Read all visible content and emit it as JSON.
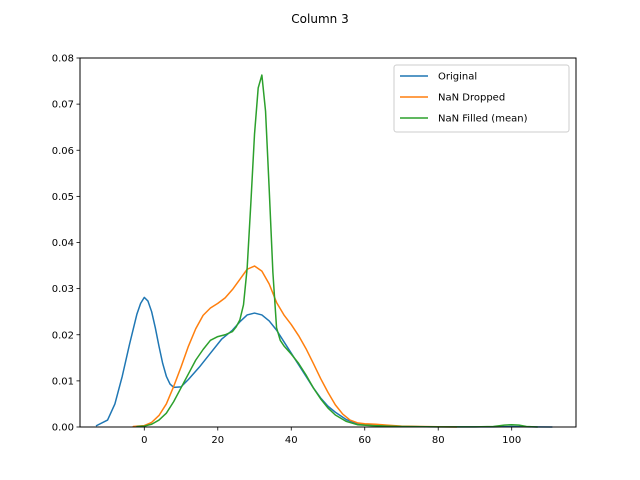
{
  "chart_data": {
    "type": "line",
    "title": "Column 3",
    "xlabel": "",
    "ylabel": "",
    "xlim": [
      -17.5,
      117.5
    ],
    "ylim": [
      0,
      0.08
    ],
    "xticks": [
      0,
      20,
      40,
      60,
      80,
      100
    ],
    "yticks": [
      0.0,
      0.01,
      0.02,
      0.03,
      0.04,
      0.05,
      0.06,
      0.07,
      0.08
    ],
    "xtick_labels": [
      "0",
      "20",
      "40",
      "60",
      "80",
      "100"
    ],
    "ytick_labels": [
      "0.00",
      "0.01",
      "0.02",
      "0.03",
      "0.04",
      "0.05",
      "0.06",
      "0.07",
      "0.08"
    ],
    "grid": false,
    "legend_position": "top-right",
    "series": [
      {
        "name": "Original",
        "color": "#1f77b4",
        "points": [
          [
            -13,
            0.0003
          ],
          [
            -10,
            0.0015
          ],
          [
            -8,
            0.005
          ],
          [
            -6,
            0.011
          ],
          [
            -4,
            0.018
          ],
          [
            -2,
            0.0245
          ],
          [
            -1,
            0.0268
          ],
          [
            0,
            0.0281
          ],
          [
            1,
            0.0273
          ],
          [
            2,
            0.025
          ],
          [
            3,
            0.0215
          ],
          [
            4,
            0.0175
          ],
          [
            5,
            0.0138
          ],
          [
            6,
            0.011
          ],
          [
            7,
            0.0093
          ],
          [
            8,
            0.0086
          ],
          [
            10,
            0.0087
          ],
          [
            12,
            0.0103
          ],
          [
            15,
            0.013
          ],
          [
            18,
            0.016
          ],
          [
            21,
            0.019
          ],
          [
            24,
            0.021
          ],
          [
            26,
            0.0228
          ],
          [
            28,
            0.0243
          ],
          [
            30,
            0.0247
          ],
          [
            32,
            0.0243
          ],
          [
            34,
            0.023
          ],
          [
            36,
            0.021
          ],
          [
            38,
            0.0185
          ],
          [
            40,
            0.016
          ],
          [
            42,
            0.0135
          ],
          [
            44,
            0.011
          ],
          [
            46,
            0.0085
          ],
          [
            48,
            0.0063
          ],
          [
            50,
            0.0045
          ],
          [
            52,
            0.0032
          ],
          [
            55,
            0.0016
          ],
          [
            58,
            0.0007
          ],
          [
            62,
            0.0005
          ],
          [
            66,
            0.0003
          ],
          [
            70,
            0.0001
          ],
          [
            75,
            5e-05
          ],
          [
            85,
            3e-05
          ],
          [
            95,
            4e-05
          ],
          [
            100,
            0.0001
          ],
          [
            105,
            3e-05
          ],
          [
            111,
            0.0
          ]
        ]
      },
      {
        "name": "NaN Dropped",
        "color": "#ff7f0e",
        "points": [
          [
            -3,
            0.0001
          ],
          [
            0,
            0.0003
          ],
          [
            2,
            0.001
          ],
          [
            4,
            0.0025
          ],
          [
            6,
            0.005
          ],
          [
            8,
            0.0088
          ],
          [
            10,
            0.013
          ],
          [
            12,
            0.0175
          ],
          [
            14,
            0.0213
          ],
          [
            16,
            0.0242
          ],
          [
            18,
            0.0258
          ],
          [
            20,
            0.0268
          ],
          [
            22,
            0.028
          ],
          [
            24,
            0.0298
          ],
          [
            26,
            0.032
          ],
          [
            28,
            0.0342
          ],
          [
            30,
            0.0349
          ],
          [
            32,
            0.0338
          ],
          [
            34,
            0.031
          ],
          [
            36,
            0.027
          ],
          [
            38,
            0.0243
          ],
          [
            40,
            0.0222
          ],
          [
            42,
            0.0198
          ],
          [
            44,
            0.017
          ],
          [
            46,
            0.0138
          ],
          [
            48,
            0.0105
          ],
          [
            50,
            0.0075
          ],
          [
            52,
            0.0048
          ],
          [
            54,
            0.0028
          ],
          [
            56,
            0.0015
          ],
          [
            58,
            0.0009
          ],
          [
            60,
            0.0007
          ],
          [
            63,
            0.0006
          ],
          [
            66,
            0.0004
          ],
          [
            70,
            0.0002
          ],
          [
            75,
            0.0001
          ],
          [
            80,
            5e-05
          ],
          [
            85,
            0.0
          ]
        ]
      },
      {
        "name": "NaN Filled (mean)",
        "color": "#2ca02c",
        "points": [
          [
            -2,
            0.0001
          ],
          [
            0,
            0.0002
          ],
          [
            2,
            0.0006
          ],
          [
            4,
            0.0015
          ],
          [
            6,
            0.003
          ],
          [
            8,
            0.0055
          ],
          [
            10,
            0.0085
          ],
          [
            12,
            0.0115
          ],
          [
            14,
            0.0145
          ],
          [
            16,
            0.0168
          ],
          [
            18,
            0.0188
          ],
          [
            20,
            0.0196
          ],
          [
            22,
            0.02
          ],
          [
            24,
            0.0207
          ],
          [
            25,
            0.0217
          ],
          [
            26,
            0.0232
          ],
          [
            27,
            0.0265
          ],
          [
            28,
            0.0345
          ],
          [
            29,
            0.0485
          ],
          [
            30,
            0.0635
          ],
          [
            31,
            0.0735
          ],
          [
            32,
            0.0763
          ],
          [
            33,
            0.0685
          ],
          [
            34,
            0.0515
          ],
          [
            35,
            0.0335
          ],
          [
            36,
            0.0215
          ],
          [
            37,
            0.0188
          ],
          [
            38,
            0.0176
          ],
          [
            40,
            0.0158
          ],
          [
            42,
            0.0138
          ],
          [
            44,
            0.0113
          ],
          [
            46,
            0.0085
          ],
          [
            48,
            0.0061
          ],
          [
            50,
            0.0041
          ],
          [
            52,
            0.0026
          ],
          [
            55,
            0.0012
          ],
          [
            58,
            0.0005
          ],
          [
            62,
            0.0003
          ],
          [
            66,
            0.0002
          ],
          [
            70,
            0.0001
          ],
          [
            80,
            2e-05
          ],
          [
            90,
            3e-05
          ],
          [
            95,
            0.0001
          ],
          [
            98,
            0.0004
          ],
          [
            100,
            0.0005
          ],
          [
            102,
            0.0004
          ],
          [
            104,
            0.0001
          ],
          [
            107,
            0.0
          ]
        ]
      }
    ]
  }
}
